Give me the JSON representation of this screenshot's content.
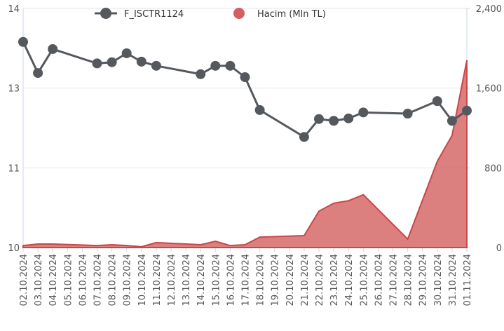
{
  "chart_data": {
    "type": "line_area",
    "x": [
      "02.10.2024",
      "03.10.2024",
      "04.10.2024",
      "07.10.2024",
      "08.10.2024",
      "09.10.2024",
      "10.10.2024",
      "11.10.2024",
      "14.10.2024",
      "15.10.2024",
      "16.10.2024",
      "17.10.2024",
      "18.10.2024",
      "21.10.2024",
      "22.10.2024",
      "23.10.2024",
      "24.10.2024",
      "25.10.2024",
      "28.10.2024",
      "30.10.2024",
      "31.10.2024",
      "01.11.2024"
    ],
    "xlim": [
      "02.10.2024",
      "01.11.2024"
    ],
    "xticks": [
      "02.10.2024",
      "03.10.2024",
      "04.10.2024",
      "05.10.2024",
      "06.10.2024",
      "07.10.2024",
      "08.10.2024",
      "09.10.2024",
      "10.10.2024",
      "11.10.2024",
      "12.10.2024",
      "13.10.2024",
      "14.10.2024",
      "15.10.2024",
      "16.10.2024",
      "17.10.2024",
      "18.10.2024",
      "19.10.2024",
      "20.10.2024",
      "21.10.2024",
      "22.10.2024",
      "23.10.2024",
      "24.10.2024",
      "25.10.2024",
      "26.10.2024",
      "27.10.2024",
      "28.10.2024",
      "29.10.2024",
      "30.10.2024",
      "31.10.2024",
      "01.11.2024"
    ],
    "series": [
      {
        "name": "F_ISCTR1124",
        "color": "#55595e",
        "kind": "line",
        "values": [
          13.44,
          12.92,
          13.32,
          13.08,
          13.1,
          13.25,
          13.11,
          13.04,
          12.9,
          13.04,
          13.04,
          12.85,
          12.3,
          11.85,
          12.15,
          12.12,
          12.16,
          12.26,
          12.24,
          12.45,
          12.12,
          12.29
        ]
      },
      {
        "name": "Hacim (Mln TL)",
        "color": "#d35f5f",
        "kind": "area",
        "axis": "y2",
        "values": [
          20,
          35,
          35,
          20,
          28,
          20,
          8,
          50,
          28,
          63,
          20,
          28,
          105,
          120,
          365,
          445,
          470,
          530,
          85,
          865,
          1125,
          1880
        ]
      }
    ],
    "ylim": [
      10,
      14
    ],
    "yticks": [
      10,
      {
        "value": 11.333,
        "label": "11"
      },
      {
        "value": 12.667,
        "label": "13"
      },
      14
    ],
    "y2lim": [
      0,
      2400
    ],
    "y2ticks": [
      0,
      800,
      {
        "value": 1600,
        "label": "1,600"
      },
      {
        "value": 2400,
        "label": "2,400"
      }
    ],
    "grid": true,
    "legend": "top"
  }
}
